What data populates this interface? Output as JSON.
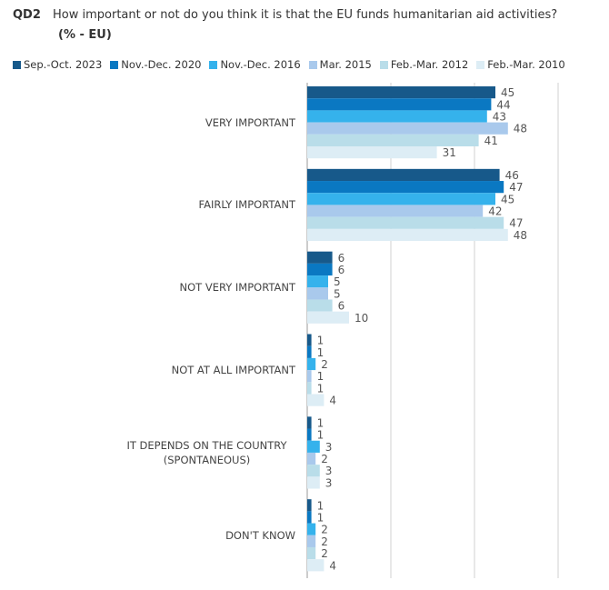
{
  "qid": "QD2",
  "chart_data": {
    "type": "hbar",
    "title": "How important or not do you think it is that the EU funds humanitarian aid activities?",
    "subtitle": "(% - EU)",
    "categories": [
      "VERY IMPORTANT",
      "FAIRLY IMPORTANT",
      "NOT VERY IMPORTANT",
      "NOT AT ALL IMPORTANT",
      "IT DEPENDS ON THE COUNTRY (SPONTANEOUS)",
      "DON'T KNOW"
    ],
    "series": [
      {
        "name": "Sep.-Oct. 2023",
        "color": "#17598a",
        "values": [
          45,
          46,
          6,
          1,
          1,
          1
        ]
      },
      {
        "name": "Nov.-Dec. 2020",
        "color": "#0a78c2",
        "values": [
          44,
          47,
          6,
          1,
          1,
          1
        ]
      },
      {
        "name": "Nov.-Dec. 2016",
        "color": "#35b2ec",
        "values": [
          43,
          45,
          5,
          2,
          3,
          2
        ]
      },
      {
        "name": "Mar. 2015",
        "color": "#a9c9ec",
        "values": [
          48,
          42,
          5,
          1,
          2,
          2
        ]
      },
      {
        "name": "Feb.-Mar. 2012",
        "color": "#b9dde9",
        "values": [
          41,
          47,
          6,
          1,
          3,
          2
        ]
      },
      {
        "name": "Feb.-Mar. 2010",
        "color": "#ddedf5",
        "values": [
          31,
          48,
          10,
          4,
          3,
          4
        ]
      }
    ],
    "xlim": [
      0,
      60
    ],
    "xticks": [
      0,
      20,
      40,
      60
    ],
    "grid": true
  }
}
